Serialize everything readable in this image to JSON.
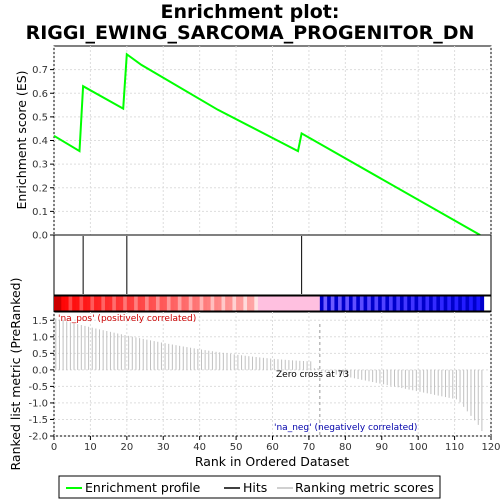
{
  "chart_data": {
    "type": "line",
    "title_line1": "Enrichment plot:",
    "title_line2": "RIGGI_EWING_SARCOMA_PROGENITOR_DN",
    "es_panel": {
      "ylabel": "Enrichment score (ES)",
      "ylim": [
        0.0,
        0.8
      ],
      "yticks": [
        "0.0",
        "0.1",
        "0.2",
        "0.3",
        "0.4",
        "0.5",
        "0.6",
        "0.7"
      ],
      "x": [
        0,
        7,
        8,
        19,
        20,
        24,
        45,
        67,
        68,
        117
      ],
      "y": [
        0.42,
        0.355,
        0.63,
        0.535,
        0.765,
        0.72,
        0.53,
        0.355,
        0.43,
        0.0
      ]
    },
    "hits": [
      8,
      20,
      68
    ],
    "metric_panel": {
      "ylabel": "Ranked list metric (PreRanked)",
      "ylim": [
        -2.0,
        1.75
      ],
      "yticks": [
        "1.5",
        "1.0",
        "0.5",
        "0.0",
        "-0.5",
        "-1.0",
        "-1.5",
        "-2.0"
      ],
      "zero_cross": 73,
      "n": 118,
      "start_value": 1.55,
      "end_value": -1.85,
      "pos_label": "'na_pos' (positively correlated)",
      "neg_label": "'na_neg' (negatively correlated)",
      "zero_cross_label": "Zero cross at 73"
    },
    "xlabel": "Rank in Ordered Dataset",
    "xlim": [
      0,
      120
    ],
    "xticks": [
      "0",
      "10",
      "20",
      "30",
      "40",
      "50",
      "60",
      "70",
      "80",
      "90",
      "100",
      "110",
      "120"
    ],
    "legend": {
      "items": [
        "Enrichment profile",
        "Hits",
        "Ranking metric scores"
      ],
      "colors": [
        "#00ff00",
        "#000000",
        "#c0c0c0"
      ]
    },
    "colors": {
      "profile": "#00ff00",
      "positive": "#ff0000",
      "negative": "#0000cc",
      "neutral": "#ffc0e0",
      "grid": "#dddddd"
    }
  }
}
